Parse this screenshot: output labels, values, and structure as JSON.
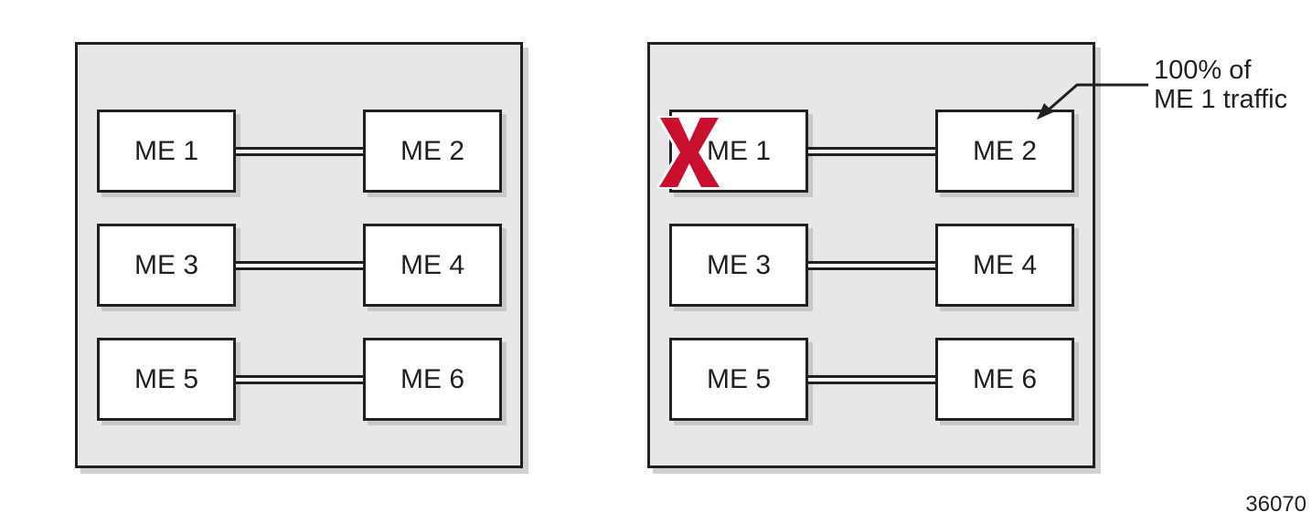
{
  "diagram": {
    "left_panel": {
      "nodes": [
        "ME 1",
        "ME 2",
        "ME 3",
        "ME 4",
        "ME 5",
        "ME 6"
      ],
      "links": [
        [
          "ME 1",
          "ME 2"
        ],
        [
          "ME 3",
          "ME 4"
        ],
        [
          "ME 5",
          "ME 6"
        ]
      ]
    },
    "right_panel": {
      "nodes": [
        "ME 1",
        "ME 2",
        "ME 3",
        "ME 4",
        "ME 5",
        "ME 6"
      ],
      "links": [
        [
          "ME 1",
          "ME 2"
        ],
        [
          "ME 3",
          "ME 4"
        ],
        [
          "ME 5",
          "ME 6"
        ]
      ],
      "failed_node": "ME 1",
      "failure_mark": "x-icon",
      "failure_color": "#c8102e",
      "annotation": {
        "line1": "100% of",
        "line2": "ME 1 traffic",
        "target": "ME 2"
      }
    },
    "figure_number": "36070"
  }
}
